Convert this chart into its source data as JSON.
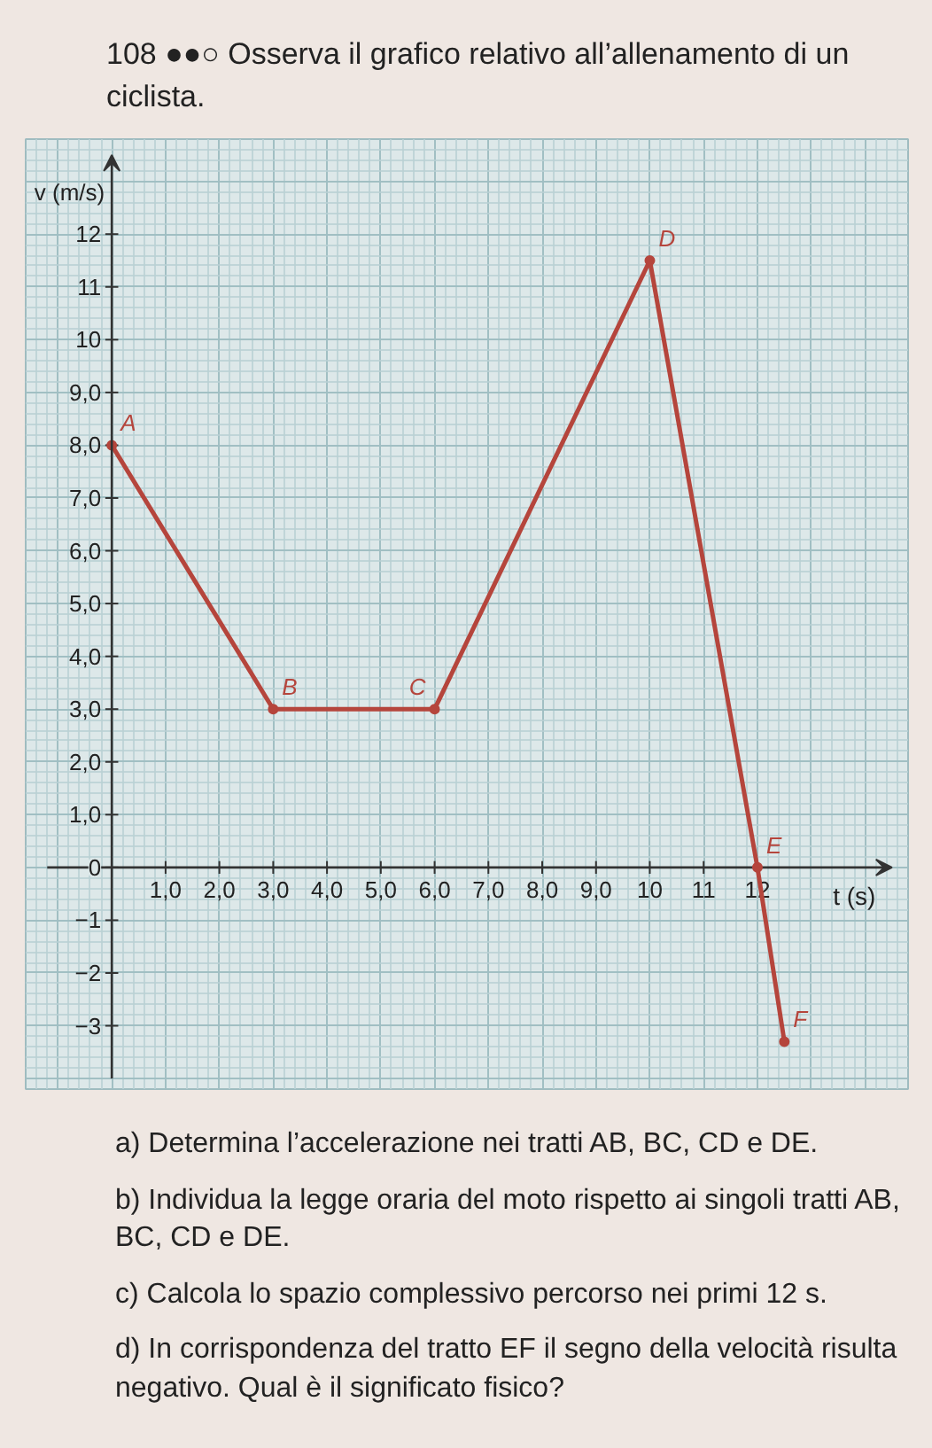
{
  "chart_data": {
    "type": "line",
    "title": "108 ●●○ Osserva il grafico relativo all’allenamento di un ciclista.",
    "xlabel": "t (s)",
    "ylabel": "v (m/s)",
    "x": [
      0,
      3,
      6,
      10,
      12,
      12.5
    ],
    "series": [
      {
        "color": "#b5453c",
        "values": [
          8,
          3,
          3,
          11.5,
          0,
          -3.3
        ]
      }
    ],
    "xlim": [
      -1.6,
      14.8
    ],
    "ylim": [
      -4.2,
      13.8
    ],
    "xticks": [
      {
        "value": 1,
        "label": "1,0"
      },
      {
        "value": 2,
        "label": "2,0"
      },
      {
        "value": 3,
        "label": "3,0"
      },
      {
        "value": 4,
        "label": "4,0"
      },
      {
        "value": 5,
        "label": "5,0"
      },
      {
        "value": 6,
        "label": "6,0"
      },
      {
        "value": 7,
        "label": "7,0"
      },
      {
        "value": 8,
        "label": "8,0"
      },
      {
        "value": 9,
        "label": "9,0"
      },
      10,
      11,
      12
    ],
    "yticks": [
      {
        "value": -3,
        "label": "−3"
      },
      {
        "value": -2,
        "label": "−2"
      },
      {
        "value": -1,
        "label": "−1"
      },
      0,
      {
        "value": 1,
        "label": "1,0"
      },
      {
        "value": 2,
        "label": "2,0"
      },
      {
        "value": 3,
        "label": "3,0"
      },
      {
        "value": 4,
        "label": "4,0"
      },
      {
        "value": 5,
        "label": "5,0"
      },
      {
        "value": 6,
        "label": "6,0"
      },
      {
        "value": 7,
        "label": "7,0"
      },
      {
        "value": 8,
        "label": "8,0"
      },
      {
        "value": 9,
        "label": "9,0"
      },
      10,
      11,
      12
    ],
    "grid": true,
    "marker": "circle",
    "annotations": [
      {
        "text": "A",
        "x": 0,
        "y": 8
      },
      {
        "text": "B",
        "x": 3,
        "y": 3
      },
      {
        "text": "C",
        "x": 6,
        "y": 3
      },
      {
        "text": "D",
        "x": 10,
        "y": 11.5
      },
      {
        "text": "E",
        "x": 12,
        "y": 0
      },
      {
        "text": "F",
        "x": 12.5,
        "y": -3.3
      },
      "a) Determina l’accelerazione nei tratti AB, BC, CD e DE.",
      "b) Individua la legge oraria del moto rispetto ai singoli tratti AB, BC, CD e DE.",
      "c) Calcola lo spazio complessivo percorso nei primi 12 s.",
      "d) In corrispondenza del tratto EF il segno della velocità risulta negativo. Qual è il significato fisico?"
    ]
  }
}
